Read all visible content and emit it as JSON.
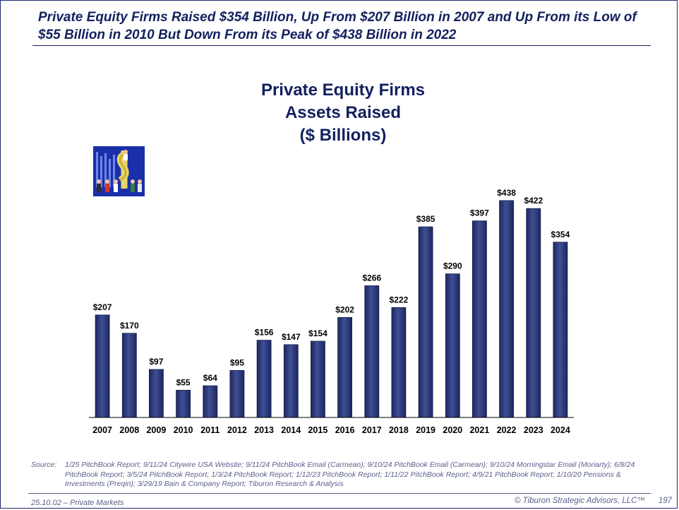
{
  "headline": "Private Equity Firms Raised $354 Billion, Up From $207 Billion in 2007 and Up From its Low of $55 Billion in 2010 But Down From its Peak of $438 Billion in 2022",
  "chart_title_lines": [
    "Private Equity Firms",
    "Assets Raised",
    "($ Billions)"
  ],
  "colors": {
    "bar": "#2b3876",
    "bar_highlight": "#4a5a9c",
    "title": "#13205e",
    "footer": "#5a5f8c"
  },
  "chart_data": {
    "type": "bar",
    "title": "Private Equity Firms Assets Raised ($ Billions)",
    "xlabel": "",
    "ylabel": "",
    "ylim": [
      0,
      475
    ],
    "grid": false,
    "categories": [
      "2007",
      "2008",
      "2009",
      "2010",
      "2011",
      "2012",
      "2013",
      "2014",
      "2015",
      "2016",
      "2017",
      "2018",
      "2019",
      "2020",
      "2021",
      "2022",
      "2023",
      "2024"
    ],
    "values": [
      207,
      170,
      97,
      55,
      64,
      95,
      156,
      147,
      154,
      202,
      266,
      222,
      385,
      290,
      397,
      438,
      422,
      354
    ],
    "data_labels": [
      "$207",
      "$170",
      "$97",
      "$55",
      "$64",
      "$95",
      "$156",
      "$147",
      "$154",
      "$202",
      "$266",
      "$222",
      "$385",
      "$290",
      "$397",
      "$438",
      "$422",
      "$354"
    ]
  },
  "source": {
    "label": "Source:",
    "text": "1/25 PitchBook Report; 9/11/24 Citywire USA Website; 9/11/24 PitchBook Email (Carmean); 9/10/24 PitchBook Email (Carmean); 9/10/24 Morningstar Email (Moriarty); 6/8/24 PitchBook Report; 3/5/24 PitchBook Report; 1/3/24 PitchBook Report; 1/12/23 PitchBook Report; 1/11/22 PitchBook Report; 4/9/21 PitchBook Report; 1/10/20 Pensions & Investments (Preqin); 3/29/19 Bain & Company Report; Tiburon Research & Analysis"
  },
  "footer": {
    "left": "25.10.02 – Private Markets",
    "right": "© Tiburon Strategic Advisors, LLC™",
    "page": "197"
  }
}
